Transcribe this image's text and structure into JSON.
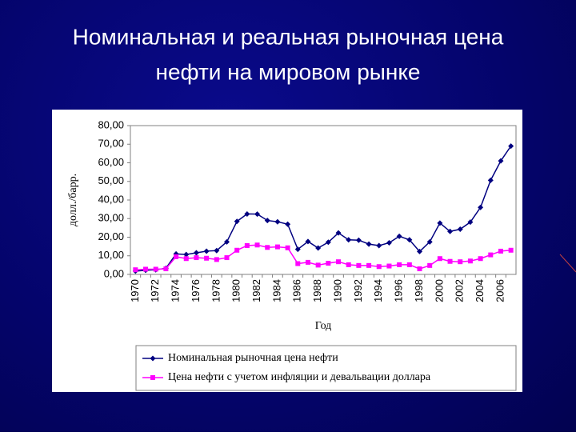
{
  "chart_data": {
    "type": "line",
    "title": [
      "Номинальная и реальная рыночная цена",
      "нефти на мировом рынке"
    ],
    "y_label": "долл./барр.",
    "x_label": "Год",
    "categories": [
      "1970",
      null,
      "1972",
      null,
      "1974",
      null,
      "1976",
      null,
      "1978",
      null,
      "1980",
      null,
      "1982",
      null,
      "1984",
      null,
      "1986",
      null,
      "1988",
      null,
      "1990",
      null,
      "1992",
      null,
      "1994",
      null,
      "1996",
      null,
      "1998",
      null,
      "2000",
      null,
      "2002",
      null,
      "2004",
      null,
      "2006",
      null
    ],
    "series": [
      {
        "name": "Номинальная рыночная цена нефти",
        "color": "#000080",
        "marker": "diamond",
        "values": [
          1.8,
          2.2,
          2.5,
          3.3,
          11.0,
          10.7,
          11.6,
          12.5,
          12.8,
          17.5,
          28.5,
          32.5,
          32.4,
          29.0,
          28.3,
          27.0,
          13.5,
          17.7,
          14.2,
          17.3,
          22.3,
          18.6,
          18.4,
          16.3,
          15.5,
          17.0,
          20.5,
          18.6,
          12.3,
          17.5,
          27.6,
          23.1,
          24.3,
          28.1,
          36.0,
          50.6,
          61.0,
          69.0
        ]
      },
      {
        "name": "Цена нефти с учетом инфляции и девальвации доллара",
        "color": "#ff00ff",
        "marker": "square",
        "values": [
          2.5,
          2.8,
          2.8,
          3.0,
          9.5,
          8.5,
          9.0,
          8.7,
          8.0,
          9.0,
          13.0,
          15.5,
          15.8,
          14.5,
          14.8,
          14.3,
          5.8,
          6.5,
          5.0,
          6.0,
          6.8,
          5.2,
          4.8,
          4.8,
          4.2,
          4.5,
          5.2,
          5.2,
          3.0,
          4.8,
          8.5,
          7.0,
          6.8,
          7.2,
          8.5,
          10.5,
          12.5,
          13.0
        ]
      }
    ],
    "ylim": [
      0,
      80
    ],
    "yticks": [
      {
        "value": 0,
        "label": "0,00"
      },
      {
        "value": 10,
        "label": "10,00"
      },
      {
        "value": 20,
        "label": "20,00"
      },
      {
        "value": 30,
        "label": "30,00"
      },
      {
        "value": 40,
        "label": "40,00"
      },
      {
        "value": 50,
        "label": "50,00"
      },
      {
        "value": 60,
        "label": "60,00"
      },
      {
        "value": 70,
        "label": "70,00"
      },
      {
        "value": 80,
        "label": "80,00"
      }
    ],
    "grid": false,
    "legend": "bottom"
  }
}
